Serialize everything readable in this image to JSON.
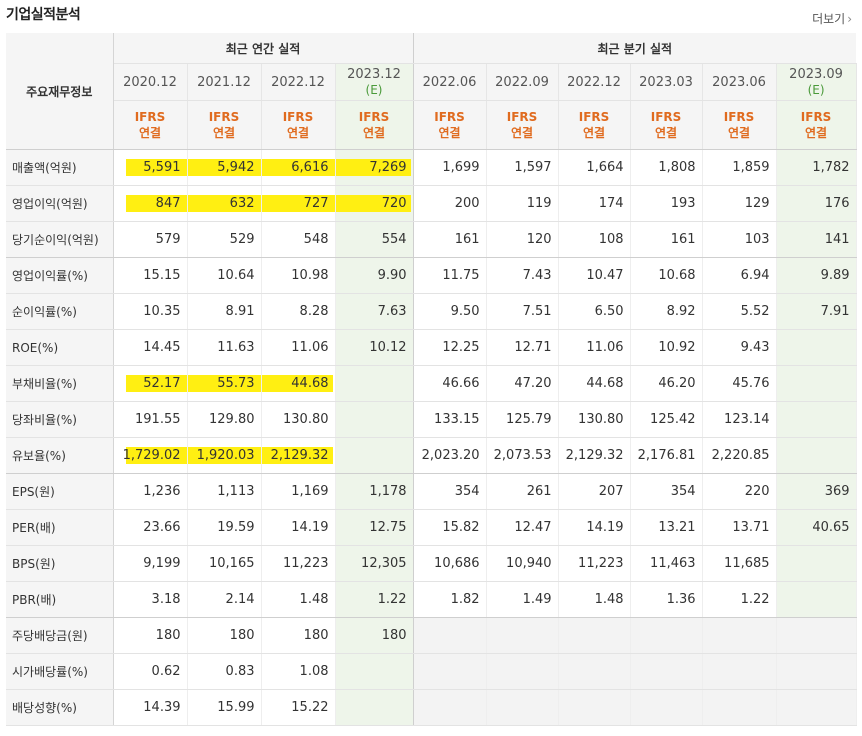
{
  "header": {
    "title": "기업실적분석",
    "more_label": "더보기",
    "more_arrow": "›"
  },
  "table": {
    "row_header_label": "주요재무정보",
    "groups": {
      "annual": "최근 연간 실적",
      "quarter": "최근 분기 실적"
    },
    "periods": [
      {
        "label": "2020.12",
        "est": ""
      },
      {
        "label": "2021.12",
        "est": ""
      },
      {
        "label": "2022.12",
        "est": ""
      },
      {
        "label": "2023.12",
        "est": "(E)"
      },
      {
        "label": "2022.06",
        "est": ""
      },
      {
        "label": "2022.09",
        "est": ""
      },
      {
        "label": "2022.12",
        "est": ""
      },
      {
        "label": "2023.03",
        "est": ""
      },
      {
        "label": "2023.06",
        "est": ""
      },
      {
        "label": "2023.09",
        "est": "(E)"
      }
    ],
    "standard": {
      "line1": "IFRS",
      "line2": "연결"
    },
    "rows": [
      {
        "label": "매출액(억원)",
        "values": [
          "5,591",
          "5,942",
          "6,616",
          "7,269",
          "1,699",
          "1,597",
          "1,664",
          "1,808",
          "1,859",
          "1,782"
        ]
      },
      {
        "label": "영업이익(억원)",
        "values": [
          "847",
          "632",
          "727",
          "720",
          "200",
          "119",
          "174",
          "193",
          "129",
          "176"
        ]
      },
      {
        "label": "당기순이익(억원)",
        "values": [
          "579",
          "529",
          "548",
          "554",
          "161",
          "120",
          "108",
          "161",
          "103",
          "141"
        ]
      },
      {
        "label": "영업이익률(%)",
        "values": [
          "15.15",
          "10.64",
          "10.98",
          "9.90",
          "11.75",
          "7.43",
          "10.47",
          "10.68",
          "6.94",
          "9.89"
        ]
      },
      {
        "label": "순이익률(%)",
        "values": [
          "10.35",
          "8.91",
          "8.28",
          "7.63",
          "9.50",
          "7.51",
          "6.50",
          "8.92",
          "5.52",
          "7.91"
        ]
      },
      {
        "label": "ROE(%)",
        "values": [
          "14.45",
          "11.63",
          "11.06",
          "10.12",
          "12.25",
          "12.71",
          "11.06",
          "10.92",
          "9.43",
          ""
        ]
      },
      {
        "label": "부채비율(%)",
        "values": [
          "52.17",
          "55.73",
          "44.68",
          "",
          "46.66",
          "47.20",
          "44.68",
          "46.20",
          "45.76",
          ""
        ]
      },
      {
        "label": "당좌비율(%)",
        "values": [
          "191.55",
          "129.80",
          "130.80",
          "",
          "133.15",
          "125.79",
          "130.80",
          "125.42",
          "123.14",
          ""
        ]
      },
      {
        "label": "유보율(%)",
        "values": [
          "1,729.02",
          "1,920.03",
          "2,129.32",
          "",
          "2,023.20",
          "2,073.53",
          "2,129.32",
          "2,176.81",
          "2,220.85",
          ""
        ]
      },
      {
        "label": "EPS(원)",
        "values": [
          "1,236",
          "1,113",
          "1,169",
          "1,178",
          "354",
          "261",
          "207",
          "354",
          "220",
          "369"
        ]
      },
      {
        "label": "PER(배)",
        "values": [
          "23.66",
          "19.59",
          "14.19",
          "12.75",
          "15.82",
          "12.47",
          "14.19",
          "13.21",
          "13.71",
          "40.65"
        ]
      },
      {
        "label": "BPS(원)",
        "values": [
          "9,199",
          "10,165",
          "11,223",
          "12,305",
          "10,686",
          "10,940",
          "11,223",
          "11,463",
          "11,685",
          ""
        ]
      },
      {
        "label": "PBR(배)",
        "values": [
          "3.18",
          "2.14",
          "1.48",
          "1.22",
          "1.82",
          "1.49",
          "1.48",
          "1.36",
          "1.22",
          ""
        ]
      },
      {
        "label": "주당배당금(원)",
        "values": [
          "180",
          "180",
          "180",
          "180",
          "",
          "",
          "",
          "",
          "",
          ""
        ]
      },
      {
        "label": "시가배당률(%)",
        "values": [
          "0.62",
          "0.83",
          "1.08",
          "",
          "",
          "",
          "",
          "",
          "",
          ""
        ]
      },
      {
        "label": "배당성향(%)",
        "values": [
          "14.39",
          "15.99",
          "15.22",
          "",
          "",
          "",
          "",
          "",
          "",
          ""
        ]
      }
    ],
    "highlight_color": "#ffef12",
    "estimate_color": "#4a9a3a",
    "ifrs_color": "#e06b1f"
  }
}
